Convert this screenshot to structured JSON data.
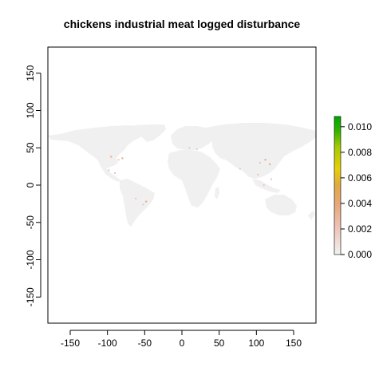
{
  "title": "chickens industrial meat logged disturbance",
  "map": {
    "x_ticks": [
      -150,
      -100,
      -50,
      0,
      50,
      100,
      150
    ],
    "y_ticks": [
      -150,
      -100,
      -50,
      0,
      50,
      100,
      150
    ],
    "xlim": [
      -180,
      180
    ],
    "ylim": [
      -185,
      185
    ],
    "land_color": "#f0f0f0",
    "hotspots": [
      {
        "lon": -95,
        "lat": 38,
        "value": 0.002
      },
      {
        "lon": -85,
        "lat": 34,
        "value": 0.001
      },
      {
        "lon": -80,
        "lat": 36,
        "value": 0.002
      },
      {
        "lon": -90,
        "lat": 16,
        "value": 0.001
      },
      {
        "lon": -98,
        "lat": 20,
        "value": 0.001
      },
      {
        "lon": -62,
        "lat": -18,
        "value": 0.001
      },
      {
        "lon": -48,
        "lat": -22,
        "value": 0.002
      },
      {
        "lon": -52,
        "lat": -26,
        "value": 0.001
      },
      {
        "lon": 10,
        "lat": 50,
        "value": 0.001
      },
      {
        "lon": 20,
        "lat": 48,
        "value": 0.001
      },
      {
        "lon": 78,
        "lat": 22,
        "value": 0.001
      },
      {
        "lon": 105,
        "lat": 30,
        "value": 0.001
      },
      {
        "lon": 112,
        "lat": 34,
        "value": 0.002
      },
      {
        "lon": 118,
        "lat": 28,
        "value": 0.002
      },
      {
        "lon": 102,
        "lat": 14,
        "value": 0.001
      },
      {
        "lon": 110,
        "lat": 0,
        "value": 0.001
      },
      {
        "lon": 120,
        "lat": 8,
        "value": 0.001
      }
    ]
  },
  "legend": {
    "ticks": [
      "0.000",
      "0.002",
      "0.004",
      "0.006",
      "0.008",
      "0.010"
    ],
    "tick_values": [
      0,
      0.002,
      0.004,
      0.006,
      0.008,
      0.01
    ],
    "range": [
      0,
      0.0108
    ],
    "colors": [
      "#f2f2f2",
      "#eec6bb",
      "#e7a77c",
      "#e0a944",
      "#e6cf08",
      "#a6c900",
      "#2db300",
      "#00a600"
    ]
  }
}
